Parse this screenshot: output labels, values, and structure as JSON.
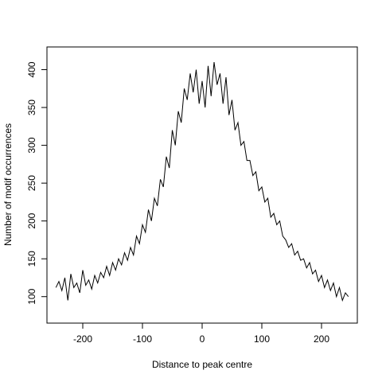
{
  "chart_data": {
    "type": "line",
    "title": "",
    "xlabel": "Distance to peak centre",
    "ylabel": "Number of motif occurrences",
    "xlim": [
      -260,
      260
    ],
    "ylim": [
      65,
      430
    ],
    "x_ticks": [
      -200,
      -100,
      0,
      100,
      200
    ],
    "x_tick_labels": [
      "-200",
      "-100",
      "0",
      "100",
      "200"
    ],
    "y_ticks": [
      100,
      150,
      200,
      250,
      300,
      350,
      400
    ],
    "y_tick_labels": [
      "100",
      "150",
      "200",
      "250",
      "300",
      "350",
      "400"
    ],
    "grid": false,
    "legend": "none",
    "series": [
      {
        "color": "#000000",
        "x": [
          -245,
          -240,
          -235,
          -230,
          -225,
          -220,
          -215,
          -210,
          -205,
          -200,
          -195,
          -190,
          -185,
          -180,
          -175,
          -170,
          -165,
          -160,
          -155,
          -150,
          -145,
          -140,
          -135,
          -130,
          -125,
          -120,
          -115,
          -110,
          -105,
          -100,
          -95,
          -90,
          -85,
          -80,
          -75,
          -70,
          -65,
          -60,
          -55,
          -50,
          -45,
          -40,
          -35,
          -30,
          -25,
          -20,
          -15,
          -10,
          -5,
          0,
          5,
          10,
          15,
          20,
          25,
          30,
          35,
          40,
          45,
          50,
          55,
          60,
          65,
          70,
          75,
          80,
          85,
          90,
          95,
          100,
          105,
          110,
          115,
          120,
          125,
          130,
          135,
          140,
          145,
          150,
          155,
          160,
          165,
          170,
          175,
          180,
          185,
          190,
          195,
          200,
          205,
          210,
          215,
          220,
          225,
          230,
          235,
          240,
          245
        ],
        "y": [
          112,
          120,
          108,
          125,
          95,
          130,
          112,
          118,
          105,
          135,
          115,
          122,
          110,
          128,
          118,
          132,
          125,
          140,
          128,
          145,
          135,
          150,
          142,
          158,
          148,
          165,
          155,
          180,
          170,
          195,
          185,
          215,
          200,
          230,
          220,
          255,
          245,
          285,
          270,
          320,
          300,
          345,
          330,
          375,
          360,
          395,
          370,
          400,
          355,
          385,
          350,
          405,
          365,
          410,
          380,
          395,
          355,
          390,
          340,
          360,
          320,
          330,
          300,
          305,
          280,
          280,
          260,
          265,
          240,
          245,
          225,
          230,
          205,
          210,
          195,
          200,
          180,
          175,
          165,
          170,
          155,
          160,
          148,
          150,
          138,
          145,
          130,
          135,
          120,
          128,
          112,
          122,
          108,
          118,
          100,
          112,
          95,
          105,
          100
        ]
      }
    ]
  }
}
